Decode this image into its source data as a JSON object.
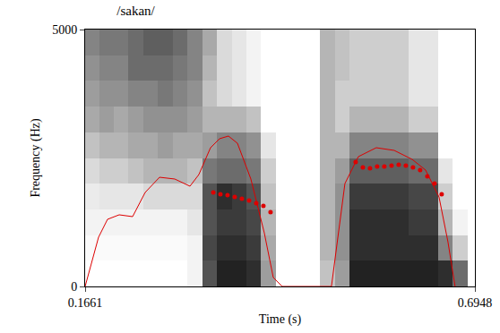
{
  "chart_data": {
    "type": "spectrogram",
    "title": "/sakan/",
    "x_label": "Time (s)",
    "y_label": "Frequency (Hz)",
    "xlim": [
      0.1661,
      0.6948
    ],
    "xticks": [
      0.1661,
      0.6948
    ],
    "ylim": [
      0,
      5000
    ],
    "yticks": [
      0,
      5000
    ],
    "grid": false,
    "spectrogram": {
      "color": "#222222",
      "x": [
        0.175,
        0.195,
        0.215,
        0.235,
        0.255,
        0.275,
        0.295,
        0.315,
        0.335,
        0.355,
        0.375,
        0.395,
        0.415,
        0.435,
        0.455,
        0.475,
        0.495,
        0.515,
        0.535,
        0.555,
        0.575,
        0.595,
        0.615,
        0.635,
        0.655,
        0.675,
        0.695
      ],
      "y": [
        250,
        750,
        1250,
        1750,
        2250,
        2750,
        3250,
        3750,
        4250,
        4750
      ],
      "z": [
        [
          0,
          0,
          0,
          0,
          0,
          0,
          0,
          0.05,
          0.7,
          0.9,
          0.9,
          0.85,
          0.4,
          0,
          0,
          0,
          0.25,
          0.4,
          0.9,
          0.9,
          0.9,
          0.9,
          0.9,
          0.9,
          0.85,
          0.6,
          0
        ],
        [
          0.02,
          0.02,
          0.02,
          0.02,
          0.02,
          0.02,
          0.02,
          0.05,
          0.75,
          0.85,
          0.85,
          0.8,
          0.35,
          0,
          0,
          0,
          0.3,
          0.45,
          0.85,
          0.85,
          0.85,
          0.85,
          0.85,
          0.85,
          0.5,
          0.2,
          0
        ],
        [
          0.05,
          0.05,
          0.05,
          0.05,
          0.05,
          0.05,
          0.05,
          0.1,
          0.7,
          0.8,
          0.8,
          0.75,
          0.3,
          0,
          0,
          0,
          0.3,
          0.45,
          0.85,
          0.85,
          0.85,
          0.85,
          0.8,
          0.8,
          0.3,
          0.05,
          0
        ],
        [
          0.08,
          0.1,
          0.1,
          0.1,
          0.15,
          0.15,
          0.15,
          0.15,
          0.7,
          0.85,
          0.8,
          0.7,
          0.25,
          0,
          0,
          0,
          0.3,
          0.45,
          0.8,
          0.8,
          0.8,
          0.8,
          0.75,
          0.75,
          0.2,
          0,
          0
        ],
        [
          0.15,
          0.2,
          0.2,
          0.25,
          0.3,
          0.3,
          0.3,
          0.25,
          0.55,
          0.6,
          0.6,
          0.55,
          0.2,
          0,
          0,
          0,
          0.3,
          0.4,
          0.65,
          0.65,
          0.65,
          0.65,
          0.6,
          0.6,
          0.1,
          0,
          0
        ],
        [
          0.25,
          0.3,
          0.3,
          0.35,
          0.35,
          0.4,
          0.35,
          0.35,
          0.4,
          0.5,
          0.5,
          0.45,
          0.1,
          0,
          0,
          0,
          0.3,
          0.3,
          0.5,
          0.5,
          0.5,
          0.5,
          0.45,
          0.45,
          0,
          0,
          0
        ],
        [
          0.35,
          0.4,
          0.35,
          0.4,
          0.45,
          0.45,
          0.45,
          0.4,
          0.3,
          0.3,
          0.3,
          0.25,
          0,
          0,
          0,
          0,
          0.3,
          0.2,
          0.3,
          0.3,
          0.3,
          0.3,
          0.2,
          0.2,
          0,
          0,
          0
        ],
        [
          0.4,
          0.45,
          0.45,
          0.5,
          0.5,
          0.55,
          0.5,
          0.45,
          0.25,
          0.15,
          0.1,
          0.05,
          0,
          0,
          0,
          0,
          0.3,
          0.2,
          0.2,
          0.2,
          0.2,
          0.2,
          0.1,
          0.1,
          0,
          0,
          0
        ],
        [
          0.45,
          0.5,
          0.5,
          0.6,
          0.6,
          0.6,
          0.55,
          0.5,
          0.3,
          0.15,
          0.1,
          0.05,
          0,
          0,
          0,
          0,
          0.3,
          0.25,
          0.2,
          0.2,
          0.2,
          0.2,
          0.1,
          0.1,
          0,
          0,
          0
        ],
        [
          0.5,
          0.55,
          0.55,
          0.6,
          0.65,
          0.65,
          0.6,
          0.5,
          0.35,
          0.15,
          0.1,
          0.05,
          0,
          0,
          0,
          0,
          0.3,
          0.25,
          0.2,
          0.2,
          0.2,
          0.2,
          0.1,
          0.1,
          0,
          0,
          0
        ]
      ]
    },
    "series": [
      {
        "type": "line",
        "color": "#dd0000",
        "line_style": "solid",
        "x": [
          0.1661,
          0.1843,
          0.1965,
          0.2123,
          0.2305,
          0.2475,
          0.267,
          0.2876,
          0.3083,
          0.3204,
          0.3362,
          0.3484,
          0.3605,
          0.3727,
          0.3909,
          0.4091,
          0.4213,
          0.4334,
          0.5002,
          0.5063,
          0.5185,
          0.5367,
          0.561,
          0.5853,
          0.6096,
          0.6279,
          0.6461,
          0.6582,
          0.6679
        ],
        "values": [
          0,
          958,
          1307,
          1394,
          1359,
          1829,
          2125,
          2091,
          1951,
          2178,
          2700,
          2875,
          2927,
          2787,
          2091,
          1045,
          174,
          0,
          0,
          697,
          2003,
          2526,
          2700,
          2648,
          2474,
          2265,
          1742,
          871,
          0
        ]
      },
      {
        "type": "scatter",
        "color": "#dd0000",
        "marker": "circle",
        "x": [
          0.3399,
          0.3496,
          0.3593,
          0.369,
          0.3787,
          0.3885,
          0.3982,
          0.4079,
          0.4176
        ],
        "values": [
          1829,
          1794,
          1777,
          1742,
          1707,
          1672,
          1620,
          1568,
          1446
        ]
      },
      {
        "type": "scatter",
        "color": "#dd0000",
        "marker": "circle",
        "x": [
          0.533,
          0.5428,
          0.5525,
          0.5622,
          0.5719,
          0.5817,
          0.5914,
          0.6011,
          0.6108,
          0.6205,
          0.6303,
          0.64,
          0.6497
        ],
        "values": [
          2422,
          2317,
          2300,
          2334,
          2334,
          2352,
          2369,
          2352,
          2317,
          2265,
          2143,
          2003,
          1794
        ]
      }
    ]
  }
}
